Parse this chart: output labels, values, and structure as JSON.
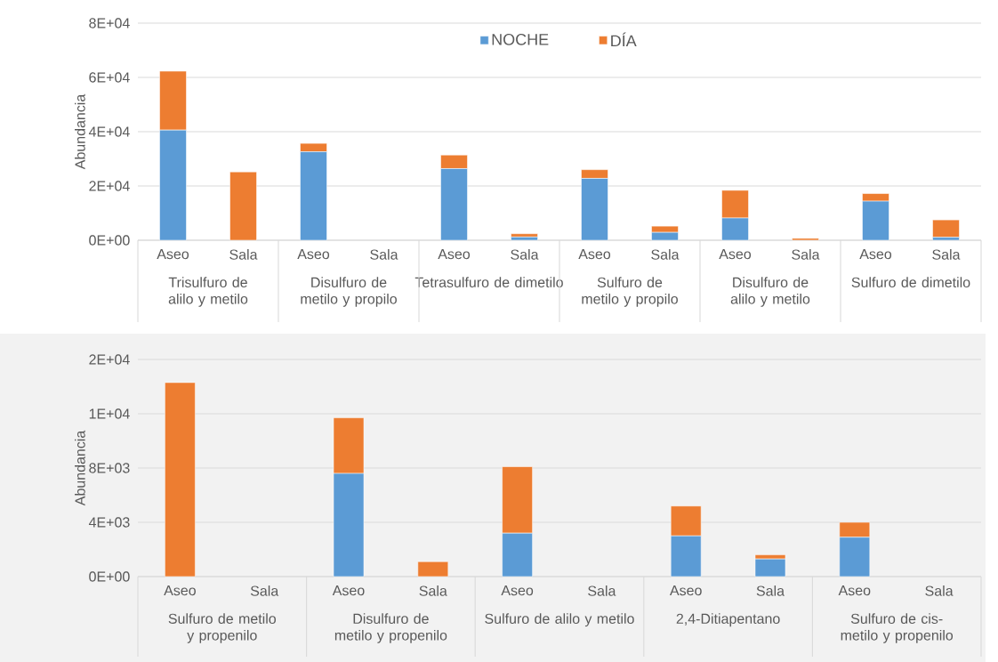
{
  "chart_data": [
    {
      "type": "bar",
      "stacked": true,
      "ylabel": "Abundancia",
      "categories": [
        "Aseo",
        "Sala",
        "Aseo",
        "Sala",
        "Aseo",
        "Sala",
        "Aseo",
        "Sala",
        "Aseo",
        "Sala",
        "Aseo",
        "Sala"
      ],
      "annotations": [
        "Trisulfuro de alilo y metilo",
        "Disulfuro de metilo y propilo",
        "Tetrasulfuro de dimetilo",
        "Sulfuro de metilo y propilo",
        "Disulfuro de alilo y metilo",
        "Sulfuro de dimetilo"
      ],
      "series": [
        {
          "name": "NOCHE",
          "color": "#5b9bd5",
          "values": [
            40600,
            0,
            32600,
            0,
            26400,
            1200,
            22800,
            2900,
            8200,
            0,
            14400,
            1100
          ]
        },
        {
          "name": "DÍA",
          "color": "#ed7d31",
          "values": [
            21700,
            25200,
            3100,
            0,
            5000,
            1200,
            3200,
            2300,
            10200,
            700,
            2800,
            6400
          ]
        }
      ],
      "ylim": [
        0,
        80000
      ],
      "yticks": [
        {
          "value": 0,
          "label": "0E+00"
        },
        {
          "value": 20000,
          "label": "2E+04"
        },
        {
          "value": 40000,
          "label": "4E+04"
        },
        {
          "value": 60000,
          "label": "6E+04"
        },
        {
          "value": 80000,
          "label": "8E+04"
        }
      ],
      "grid": "y",
      "legend": "top"
    },
    {
      "type": "bar",
      "stacked": true,
      "ylabel": "Abundancia",
      "categories": [
        "Aseo",
        "Sala",
        "Aseo",
        "Sala",
        "Aseo",
        "Sala",
        "Aseo",
        "Sala",
        "Aseo",
        "Sala"
      ],
      "annotations": [
        "Sulfuro de metilo y propenilo",
        "Disulfuro de metilo y propenilo",
        "Sulfuro de alilo y metilo",
        "2,4-Ditiapentano",
        "Sulfuro de cis-metilo y propenilo"
      ],
      "series": [
        {
          "color": "#5b9bd5",
          "values": [
            0,
            0,
            7600,
            0,
            3200,
            0,
            3000,
            1300,
            2900,
            0
          ]
        },
        {
          "color": "#ed7d31",
          "values": [
            14300,
            0,
            4100,
            1100,
            4900,
            0,
            2200,
            300,
            1100,
            0
          ]
        }
      ],
      "ylim": [
        0,
        16000
      ],
      "yticks": [
        {
          "value": 0,
          "label": "0E+00"
        },
        {
          "value": 4000,
          "label": "4E+03"
        },
        {
          "value": 8000,
          "label": "8E+03"
        },
        {
          "value": 12000,
          "label": "1E+04"
        },
        {
          "value": 16000,
          "label": "2E+04"
        }
      ],
      "grid": "y",
      "legend": false
    }
  ]
}
